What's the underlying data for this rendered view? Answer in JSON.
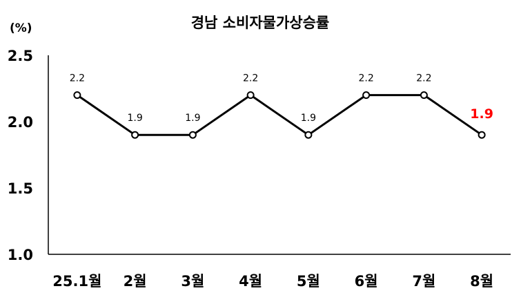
{
  "chart_data": {
    "type": "line",
    "title": "경남 소비자물가상승률",
    "unit_label": "(%)",
    "categories": [
      "25.1월",
      "2월",
      "3월",
      "4월",
      "5월",
      "6월",
      "7월",
      "8월"
    ],
    "series": [
      {
        "values": [
          2.2,
          1.9,
          1.9,
          2.2,
          1.9,
          2.2,
          2.2,
          1.9
        ],
        "data_labels": [
          "2.2",
          "1.9",
          "1.9",
          "2.2",
          "1.9",
          "2.2",
          "2.2",
          "1.9"
        ]
      }
    ],
    "ylim": [
      1.0,
      2.5
    ],
    "yticks": [
      "1.0",
      "1.5",
      "2.0",
      "2.5"
    ],
    "grid": false,
    "highlight_index": 7,
    "colors": {
      "line": "#000000",
      "marker_fill": "#ffffff",
      "highlight_label": "#ff0000"
    }
  }
}
